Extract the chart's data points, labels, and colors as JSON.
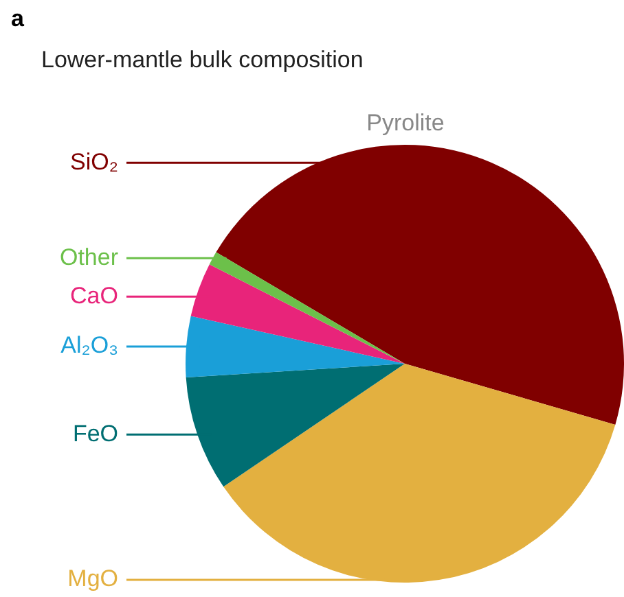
{
  "chart_data": {
    "type": "pie",
    "title": "Lower-mantle bulk composition",
    "subtitle": "Pyrolite",
    "annotations": [
      "a"
    ],
    "categories": [
      "SiO₂",
      "MgO",
      "FeO",
      "Al₂O₃",
      "CaO",
      "Other"
    ],
    "values": [
      46,
      36,
      8.5,
      4.5,
      4,
      1
    ],
    "colors": [
      "#800000",
      "#e3b040",
      "#006e72",
      "#1a9fd8",
      "#e8247a",
      "#6cc04a"
    ],
    "legend": false
  }
}
